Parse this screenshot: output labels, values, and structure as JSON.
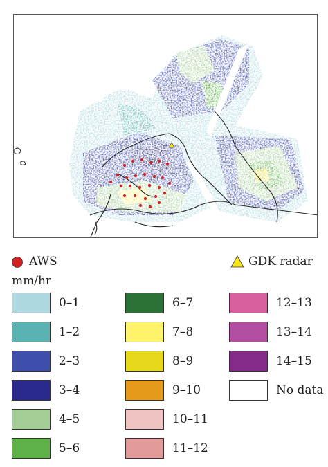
{
  "legend": {
    "aws_label": "AWS",
    "radar_label": "GDK radar",
    "units": "mm/hr",
    "classes": [
      {
        "label": "0–1",
        "color": "#add8e0"
      },
      {
        "label": "1–2",
        "color": "#5ab3b3"
      },
      {
        "label": "2–3",
        "color": "#3d4faa"
      },
      {
        "label": "3–4",
        "color": "#2a2a8c"
      },
      {
        "label": "4–5",
        "color": "#a3cf96"
      },
      {
        "label": "5–6",
        "color": "#5db146"
      },
      {
        "label": "6–7",
        "color": "#2b7035"
      },
      {
        "label": "7–8",
        "color": "#fff36b"
      },
      {
        "label": "8–9",
        "color": "#e8d81c"
      },
      {
        "label": "9–10",
        "color": "#e59a1c"
      },
      {
        "label": "10–11",
        "color": "#f0c3c3"
      },
      {
        "label": "11–12",
        "color": "#e39a9a"
      },
      {
        "label": "12–13",
        "color": "#d8609e"
      },
      {
        "label": "13–14",
        "color": "#b44ea3"
      },
      {
        "label": "14–15",
        "color": "#842a87"
      },
      {
        "label": "No data",
        "color": "#ffffff"
      }
    ]
  },
  "symbols": {
    "aws_color": "#d32020",
    "radar_color": "#f5e31c"
  }
}
